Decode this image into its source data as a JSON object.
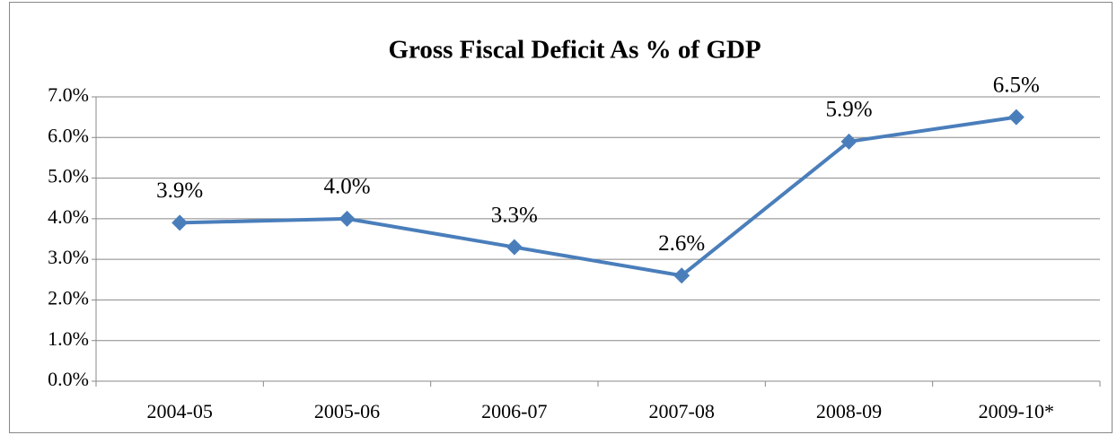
{
  "chart_data": {
    "type": "line",
    "title": "Gross Fiscal Deficit As % of GDP",
    "categories": [
      "2004-05",
      "2005-06",
      "2006-07",
      "2007-08",
      "2008-09",
      "2009-10*"
    ],
    "series": [
      {
        "name": "Gross Fiscal Deficit",
        "color": "#4a7ebb",
        "values": [
          3.9,
          4.0,
          3.3,
          2.6,
          5.9,
          6.5
        ],
        "value_labels": [
          "3.9%",
          "4.0%",
          "3.3%",
          "2.6%",
          "5.9%",
          "6.5%"
        ]
      }
    ],
    "ylim": [
      0,
      7
    ],
    "yticks": [
      {
        "value": 0,
        "label": "0.0%"
      },
      {
        "value": 1,
        "label": "1.0%"
      },
      {
        "value": 2,
        "label": "2.0%"
      },
      {
        "value": 3,
        "label": "3.0%"
      },
      {
        "value": 4,
        "label": "4.0%"
      },
      {
        "value": 5,
        "label": "5.0%"
      },
      {
        "value": 6,
        "label": "6.0%"
      },
      {
        "value": 7,
        "label": "7.0%"
      }
    ],
    "grid": true
  }
}
